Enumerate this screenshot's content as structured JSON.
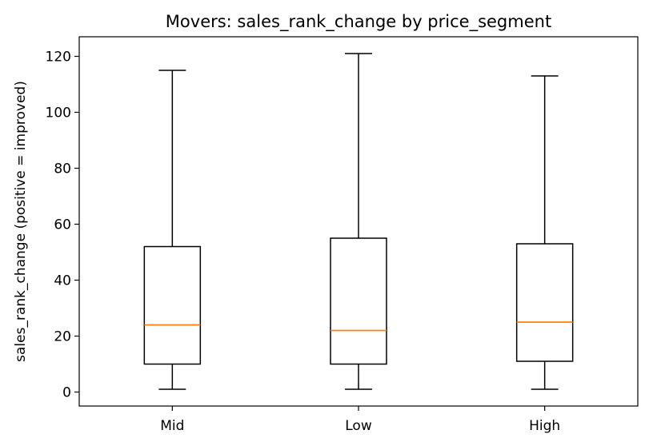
{
  "chart_data": {
    "type": "boxplot",
    "title": "Movers: sales_rank_change by price_segment",
    "xlabel": "",
    "ylabel": "sales_rank_change (positive = improved)",
    "ylim": [
      -5,
      127
    ],
    "yticks": [
      0,
      20,
      40,
      60,
      80,
      100,
      120
    ],
    "grid": false,
    "categories": [
      "Mid",
      "Low",
      "High"
    ],
    "boxes": [
      {
        "category": "Mid",
        "whisker_low": 1,
        "q1": 10,
        "median": 24,
        "q3": 52,
        "whisker_high": 115
      },
      {
        "category": "Low",
        "whisker_low": 1,
        "q1": 10,
        "median": 22,
        "q3": 55,
        "whisker_high": 121
      },
      {
        "category": "High",
        "whisker_low": 1,
        "q1": 11,
        "median": 25,
        "q3": 53,
        "whisker_high": 113
      }
    ],
    "colors": {
      "box": "#000000",
      "median": "#ff7f0e"
    }
  }
}
